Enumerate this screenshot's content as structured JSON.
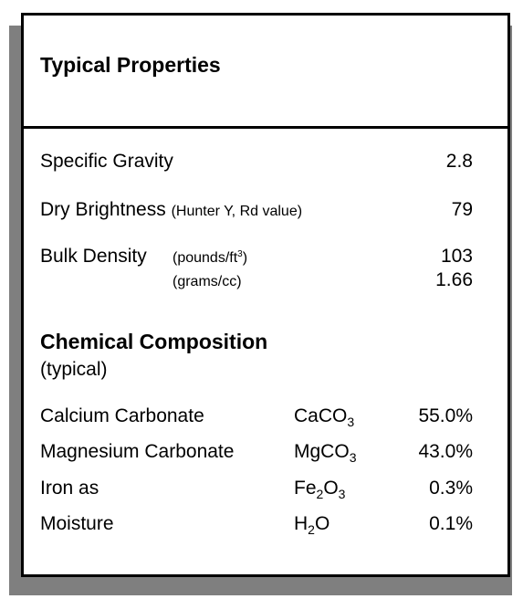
{
  "title": "Typical Properties",
  "properties": {
    "specific_gravity": {
      "label": "Specific Gravity",
      "value": "2.8"
    },
    "dry_brightness": {
      "label": "Dry Brightness",
      "note": "(Hunter Y, Rd value)",
      "value": "79"
    },
    "bulk_density": {
      "label": "Bulk Density",
      "unit1_pre": "(pounds/ft",
      "unit1_sup": "3",
      "unit1_post": ")",
      "value1": "103",
      "unit2": "(grams/cc)",
      "value2": "1.66"
    }
  },
  "chemical": {
    "heading": "Chemical Composition",
    "subheading": "(typical)",
    "rows": [
      {
        "name": "Calcium Carbonate",
        "f_pre": "CaCO",
        "f_sub1": "3",
        "f_mid": "",
        "f_sub2": "",
        "value": "55.0%"
      },
      {
        "name": "Magnesium Carbonate",
        "f_pre": "MgCO",
        "f_sub1": "3",
        "f_mid": "",
        "f_sub2": "",
        "value": "43.0%"
      },
      {
        "name": "Iron as",
        "f_pre": "Fe",
        "f_sub1": "2",
        "f_mid": "O",
        "f_sub2": "3",
        "value": "0.3%"
      },
      {
        "name": "Moisture",
        "f_pre": "H",
        "f_sub1": "2",
        "f_mid": "O",
        "f_sub2": "",
        "value": "0.1%"
      }
    ]
  }
}
